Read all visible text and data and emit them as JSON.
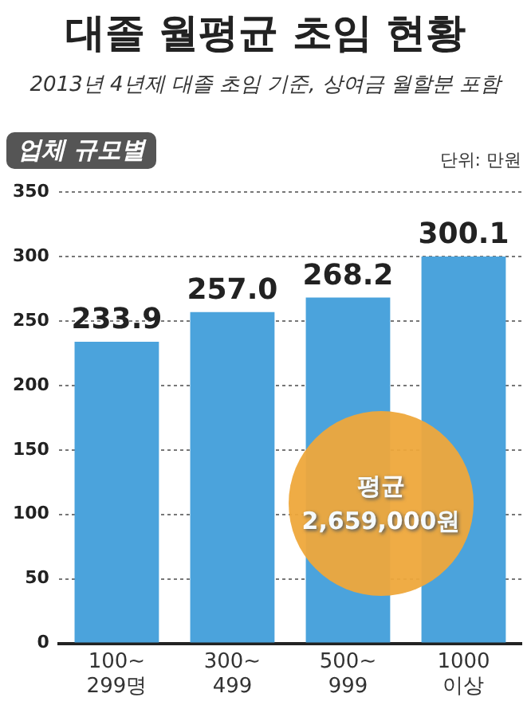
{
  "chart_data": {
    "type": "bar",
    "title": "대졸 월평균 초임 현황",
    "subtitle": "2013년 4년제 대졸 초임 기준, 상여금 월할분 포함",
    "annotations": [
      "업체 규모별",
      "단위: 만원",
      "평균 2,659,000원"
    ],
    "categories": [
      "100~\n299명",
      "300~\n499",
      "500~\n999",
      "1000\n이상"
    ],
    "values": [
      233.9,
      257.0,
      268.2,
      300.1
    ],
    "value_labels": [
      "233.9",
      "257.0",
      "268.2",
      "300.1"
    ],
    "color": "#4ba3dc",
    "ylim": [
      0,
      350
    ],
    "yticks": [
      0,
      50,
      100,
      150,
      200,
      250,
      300,
      350
    ],
    "grid": "y",
    "legend": false
  }
}
